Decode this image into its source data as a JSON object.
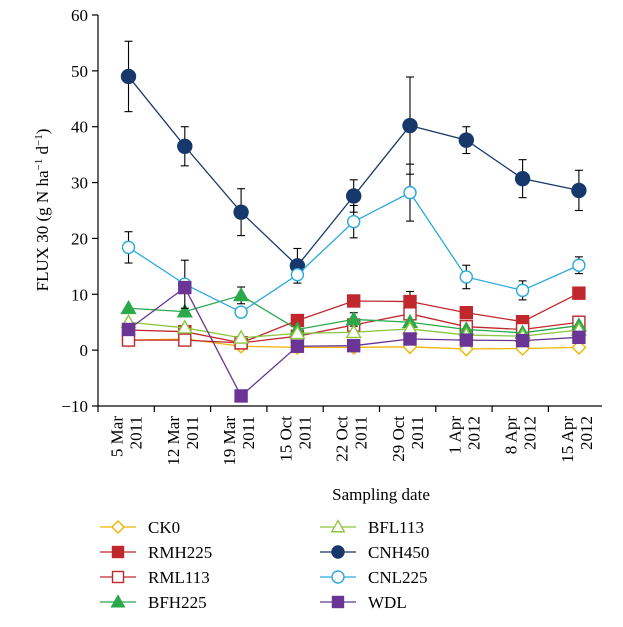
{
  "chart_data": {
    "type": "line",
    "xlabel": "Sampling date",
    "ylabel": "FLUX 30 (g N ha⁻¹ d⁻¹)",
    "ylabel_parts": [
      "FLUX 30 (g N ha",
      "−1",
      " d",
      "−1",
      ")"
    ],
    "ylim": [
      -10,
      60
    ],
    "yticks": [
      -10,
      0,
      10,
      20,
      30,
      40,
      50,
      60
    ],
    "categories": [
      [
        "5 Mar",
        "2011"
      ],
      [
        "12 Mar",
        "2011"
      ],
      [
        "19 Mar",
        "2011"
      ],
      [
        "15 Oct",
        "2011"
      ],
      [
        "22 Oct",
        "2011"
      ],
      [
        "29 Oct",
        "2011"
      ],
      [
        "1 Apr",
        "2012"
      ],
      [
        "8 Apr",
        "2012"
      ],
      [
        "15 Apr",
        "2012"
      ]
    ],
    "legend_placement": "bottom",
    "grid": false,
    "series": [
      {
        "name": "CK0",
        "color": "#f0b400",
        "marker": "diamond",
        "filled": false,
        "values": [
          1.8,
          2.0,
          0.7,
          0.5,
          0.5,
          0.6,
          0.2,
          0.3,
          0.5
        ]
      },
      {
        "name": "RMH225",
        "color": "#c0282e",
        "marker": "square",
        "filled": true,
        "values": [
          3.6,
          3.3,
          1.3,
          5.3,
          8.8,
          8.7,
          6.7,
          5.1,
          10.2
        ],
        "errors": [
          0,
          0,
          0,
          0,
          0.6,
          1.8,
          1.0,
          1.0,
          0.8
        ]
      },
      {
        "name": "RML113",
        "color": "#c0282e",
        "marker": "square",
        "filled": false,
        "values": [
          1.8,
          1.8,
          1.3,
          2.5,
          4.5,
          6.5,
          4.2,
          3.7,
          5.0
        ]
      },
      {
        "name": "BFH225",
        "color": "#2aa84a",
        "marker": "triangle",
        "filled": true,
        "values": [
          7.5,
          6.9,
          9.8,
          3.7,
          5.5,
          5.0,
          3.7,
          3.1,
          4.4
        ],
        "errors": [
          0,
          0,
          1.5,
          0,
          1.2,
          0,
          0,
          0,
          0
        ]
      },
      {
        "name": "BFL113",
        "color": "#8cc63f",
        "marker": "triangle",
        "filled": false,
        "values": [
          5.0,
          4.0,
          2.2,
          3.0,
          3.2,
          3.8,
          2.7,
          2.5,
          3.6
        ]
      },
      {
        "name": "CNH450",
        "color": "#17386b",
        "marker": "circle",
        "filled": true,
        "values": [
          49.0,
          36.5,
          24.7,
          15.1,
          27.6,
          40.2,
          37.6,
          30.7,
          28.6
        ],
        "errors": [
          6.3,
          3.5,
          4.2,
          3.1,
          2.9,
          8.7,
          2.4,
          3.4,
          3.6
        ]
      },
      {
        "name": "CNL225",
        "color": "#2ba9dc",
        "marker": "circle",
        "filled": false,
        "values": [
          18.4,
          11.8,
          6.8,
          13.5,
          23.0,
          28.2,
          13.1,
          10.7,
          15.2
        ],
        "errors": [
          2.8,
          4.3,
          0,
          0,
          2.9,
          5.1,
          2.1,
          1.7,
          1.5
        ]
      },
      {
        "name": "WDL",
        "color": "#6a3594",
        "marker": "square",
        "filled": true,
        "values": [
          3.7,
          11.2,
          -8.2,
          0.7,
          0.8,
          2.0,
          1.8,
          1.7,
          2.3
        ]
      }
    ]
  }
}
